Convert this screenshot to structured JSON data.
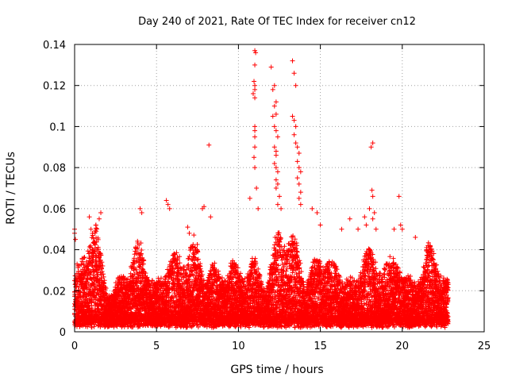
{
  "chart_data": {
    "type": "scatter",
    "title": "Day 240 of 2021, Rate Of TEC Index for receiver cn12",
    "xlabel": "GPS time / hours",
    "ylabel": "ROTI / TECUs",
    "xlim": [
      0,
      25
    ],
    "ylim": [
      0,
      0.14
    ],
    "x_ticks": [
      "0",
      "5",
      "10",
      "15",
      "20",
      "25"
    ],
    "y_ticks": [
      "0",
      "0.02",
      "0.04",
      "0.06",
      "0.08",
      "0.1",
      "0.12",
      "0.14"
    ],
    "grid": true,
    "marker": "+",
    "color": "#ff0000",
    "series": [
      {
        "name": "ROTI",
        "points": [
          [
            0.0,
            0.05
          ],
          [
            0.0,
            0.048
          ],
          [
            0.05,
            0.045
          ],
          [
            0.1,
            0.02
          ],
          [
            0.15,
            0.033
          ],
          [
            0.2,
            0.012
          ],
          [
            0.9,
            0.056
          ],
          [
            1.0,
            0.05
          ],
          [
            1.1,
            0.047
          ],
          [
            1.3,
            0.052
          ],
          [
            1.6,
            0.058
          ],
          [
            1.5,
            0.055
          ],
          [
            4.0,
            0.06
          ],
          [
            4.1,
            0.058
          ],
          [
            5.6,
            0.064
          ],
          [
            5.7,
            0.062
          ],
          [
            5.8,
            0.06
          ],
          [
            6.9,
            0.051
          ],
          [
            7.0,
            0.048
          ],
          [
            7.8,
            0.06
          ],
          [
            7.9,
            0.061
          ],
          [
            8.2,
            0.091
          ],
          [
            8.3,
            0.056
          ],
          [
            10.7,
            0.065
          ],
          [
            11.0,
            0.137
          ],
          [
            11.05,
            0.136
          ],
          [
            11.0,
            0.13
          ],
          [
            10.95,
            0.122
          ],
          [
            11.0,
            0.12
          ],
          [
            11.0,
            0.118
          ],
          [
            10.9,
            0.116
          ],
          [
            11.0,
            0.114
          ],
          [
            11.0,
            0.1
          ],
          [
            11.0,
            0.098
          ],
          [
            11.0,
            0.095
          ],
          [
            11.0,
            0.09
          ],
          [
            10.95,
            0.085
          ],
          [
            11.0,
            0.08
          ],
          [
            11.1,
            0.07
          ],
          [
            11.2,
            0.06
          ],
          [
            12.0,
            0.129
          ],
          [
            12.2,
            0.12
          ],
          [
            12.1,
            0.118
          ],
          [
            12.3,
            0.112
          ],
          [
            12.2,
            0.11
          ],
          [
            12.3,
            0.106
          ],
          [
            12.1,
            0.105
          ],
          [
            12.2,
            0.1
          ],
          [
            12.3,
            0.098
          ],
          [
            12.4,
            0.095
          ],
          [
            12.2,
            0.09
          ],
          [
            12.3,
            0.088
          ],
          [
            12.3,
            0.086
          ],
          [
            12.2,
            0.082
          ],
          [
            12.3,
            0.08
          ],
          [
            12.4,
            0.078
          ],
          [
            12.3,
            0.074
          ],
          [
            12.4,
            0.072
          ],
          [
            12.3,
            0.07
          ],
          [
            12.5,
            0.066
          ],
          [
            12.4,
            0.062
          ],
          [
            12.6,
            0.06
          ],
          [
            13.3,
            0.132
          ],
          [
            13.4,
            0.126
          ],
          [
            13.5,
            0.12
          ],
          [
            13.3,
            0.105
          ],
          [
            13.4,
            0.103
          ],
          [
            13.5,
            0.1
          ],
          [
            13.4,
            0.096
          ],
          [
            13.5,
            0.092
          ],
          [
            13.6,
            0.09
          ],
          [
            13.7,
            0.087
          ],
          [
            13.6,
            0.083
          ],
          [
            13.7,
            0.08
          ],
          [
            13.8,
            0.078
          ],
          [
            13.6,
            0.075
          ],
          [
            13.7,
            0.072
          ],
          [
            13.8,
            0.068
          ],
          [
            13.7,
            0.065
          ],
          [
            13.8,
            0.062
          ],
          [
            14.5,
            0.06
          ],
          [
            14.8,
            0.058
          ],
          [
            15.0,
            0.052
          ],
          [
            16.3,
            0.05
          ],
          [
            16.8,
            0.055
          ],
          [
            17.3,
            0.05
          ],
          [
            17.7,
            0.056
          ],
          [
            17.8,
            0.052
          ],
          [
            18.0,
            0.06
          ],
          [
            18.1,
            0.09
          ],
          [
            18.2,
            0.092
          ],
          [
            18.15,
            0.069
          ],
          [
            18.2,
            0.066
          ],
          [
            18.3,
            0.058
          ],
          [
            18.2,
            0.055
          ],
          [
            18.4,
            0.05
          ],
          [
            19.5,
            0.05
          ],
          [
            19.8,
            0.066
          ],
          [
            19.9,
            0.052
          ],
          [
            20.0,
            0.05
          ],
          [
            20.8,
            0.046
          ],
          [
            21.5,
            0.04
          ],
          [
            21.7,
            0.042
          ],
          [
            22.5,
            0.025
          ]
        ]
      }
    ]
  }
}
